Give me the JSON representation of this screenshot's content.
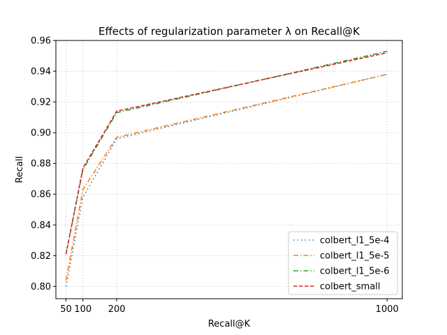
{
  "chart_data": {
    "type": "line",
    "title": "Effects of regularization parameter λ on Recall@K",
    "xlabel": "Recall@K",
    "ylabel": "Recall",
    "xlim": [
      20,
      1045
    ],
    "ylim": [
      0.792,
      0.96
    ],
    "xticks": [
      50,
      100,
      200,
      1000
    ],
    "yticks": [
      0.8,
      0.82,
      0.84,
      0.86,
      0.88,
      0.9,
      0.92,
      0.94,
      0.96
    ],
    "ytick_labels": [
      "0.80",
      "0.82",
      "0.84",
      "0.86",
      "0.88",
      "0.90",
      "0.92",
      "0.94",
      "0.96"
    ],
    "grid": true,
    "legend_position": "lower-right",
    "x": [
      50,
      100,
      200,
      1000
    ],
    "series": [
      {
        "name": "colbert_l1_5e-4",
        "values": [
          0.8,
          0.858,
          0.896,
          0.938
        ],
        "color": "#1f77b4",
        "style": "dotted"
      },
      {
        "name": "colbert_l1_5e-5",
        "values": [
          0.804,
          0.863,
          0.897,
          0.938
        ],
        "color": "#ff7f0e",
        "style": "dashdot"
      },
      {
        "name": "colbert_l1_5e-6",
        "values": [
          0.821,
          0.876,
          0.913,
          0.953
        ],
        "color": "#2ca02c",
        "style": "dashdot"
      },
      {
        "name": "colbert_small",
        "values": [
          0.821,
          0.877,
          0.914,
          0.952
        ],
        "color": "#d62728",
        "style": "dashed"
      }
    ]
  }
}
